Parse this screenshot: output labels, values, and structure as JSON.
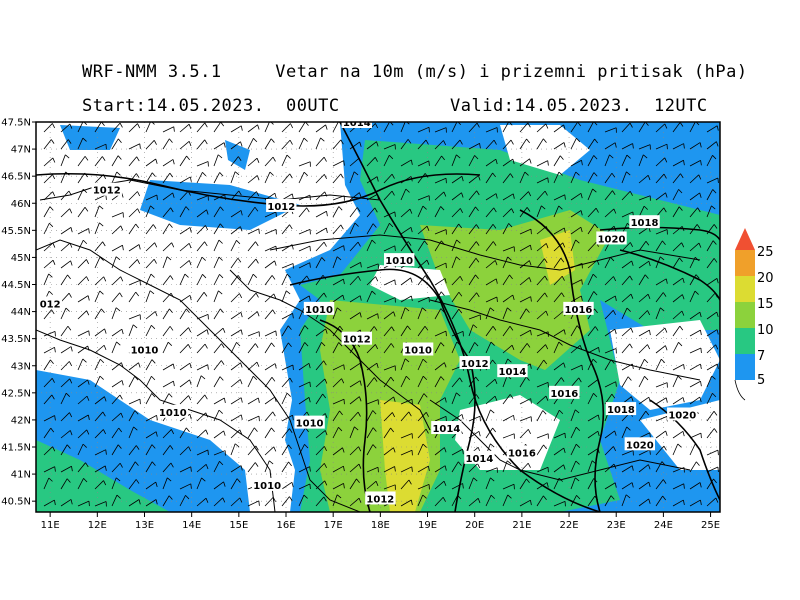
{
  "header": {
    "title": "WRF-NMM 3.5.1     Vetar na 10m (m/s) i prizemni pritisak (hPa)",
    "start": "Start:14.05.2023.  00UTC",
    "valid": "Valid:14.05.2023.  12UTC"
  },
  "colors": {
    "w5": "#1e96f0",
    "w7": "#28c882",
    "w10": "#8cd23c",
    "w15": "#dcdc32",
    "w20": "#f0a02a",
    "w25": "#f05032",
    "coast": "#000000",
    "grid": "#888888"
  },
  "legend": {
    "labels": [
      "5",
      "7",
      "10",
      "15",
      "20",
      "25"
    ]
  },
  "axes": {
    "lon_labels": [
      "11E",
      "12E",
      "13E",
      "14E",
      "15E",
      "16E",
      "17E",
      "18E",
      "19E",
      "20E",
      "21E",
      "22E",
      "23E",
      "24E",
      "25E"
    ],
    "lat_labels": [
      "47.5N",
      "47N",
      "46.5N",
      "46N",
      "45.5N",
      "45N",
      "44.5N",
      "44N",
      "43.5N",
      "43N",
      "42.5N",
      "42N",
      "41.5N",
      "41N",
      "40.5N"
    ]
  },
  "isobars": [
    {
      "label": "1014",
      "lon": 17.5,
      "lat": 47.5
    },
    {
      "label": "1012",
      "lon": 12.2,
      "lat": 46.25
    },
    {
      "label": "1012",
      "lon": 15.9,
      "lat": 45.95
    },
    {
      "label": "012",
      "lon": 11.0,
      "lat": 44.15
    },
    {
      "label": "1010",
      "lon": 18.4,
      "lat": 44.95
    },
    {
      "label": "1010",
      "lon": 16.7,
      "lat": 44.05
    },
    {
      "label": "1012",
      "lon": 17.5,
      "lat": 43.5
    },
    {
      "label": "1010",
      "lon": 18.8,
      "lat": 43.3
    },
    {
      "label": "1012",
      "lon": 20.0,
      "lat": 43.05
    },
    {
      "label": "1014",
      "lon": 20.8,
      "lat": 42.9
    },
    {
      "label": "1010",
      "lon": 13.0,
      "lat": 43.3
    },
    {
      "label": "1010",
      "lon": 13.6,
      "lat": 42.15
    },
    {
      "label": "1010",
      "lon": 16.5,
      "lat": 41.95
    },
    {
      "label": "1010",
      "lon": 15.6,
      "lat": 40.8
    },
    {
      "label": "1012",
      "lon": 18.0,
      "lat": 40.55
    },
    {
      "label": "1014",
      "lon": 19.4,
      "lat": 41.85
    },
    {
      "label": "1014",
      "lon": 20.1,
      "lat": 41.3
    },
    {
      "label": "1016",
      "lon": 21.0,
      "lat": 41.4
    },
    {
      "label": "1016",
      "lon": 21.9,
      "lat": 42.5
    },
    {
      "label": "1016",
      "lon": 22.2,
      "lat": 44.05
    },
    {
      "label": "1018",
      "lon": 23.1,
      "lat": 42.2
    },
    {
      "label": "1018",
      "lon": 23.6,
      "lat": 45.65
    },
    {
      "label": "1020",
      "lon": 22.9,
      "lat": 45.35
    },
    {
      "label": "1020",
      "lon": 23.5,
      "lat": 41.55
    },
    {
      "label": "1020",
      "lon": 24.4,
      "lat": 42.1
    }
  ]
}
